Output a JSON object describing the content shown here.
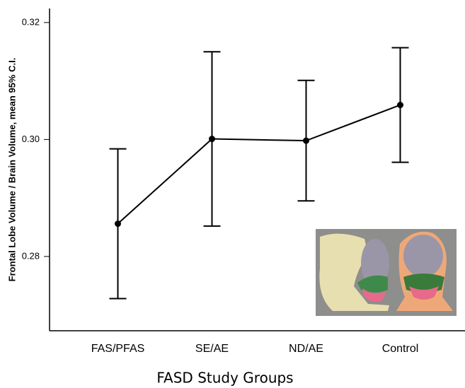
{
  "chart_data": {
    "type": "line",
    "x_label": "FASD Study Groups",
    "y_label": "Frontal Lobe Volume / Brain Volume, mean 95% C.I.",
    "categories": [
      "FAS/PFAS",
      "SE/AE",
      "ND/AE",
      "Control"
    ],
    "values": [
      0.2856,
      0.3001,
      0.2998,
      0.3059
    ],
    "errors": [
      0.0128,
      0.0149,
      0.0103,
      0.0098
    ],
    "color": "#000000",
    "ylim": [
      0.2673,
      0.3224
    ],
    "yticks": [
      0.28,
      {
        "value": 0.3,
        "label": "0.30"
      },
      0.32
    ]
  }
}
